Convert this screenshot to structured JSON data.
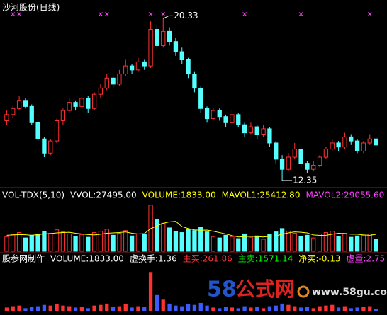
{
  "chart_data": [
    {
      "type": "candlestick",
      "title": "沙河股份(日线)",
      "high_label": "20.33",
      "low_label": "12.35",
      "up_color": "#ff3232",
      "down_color": "#54ffff",
      "signal_color": "#ff40ff",
      "ylim": [
        12.0,
        20.9
      ],
      "signals": [
        1,
        2,
        15,
        16,
        23,
        25,
        38,
        47,
        58
      ],
      "candles": [
        [
          15.3,
          15.8,
          15.1,
          15.6
        ],
        [
          15.6,
          16.0,
          15.4,
          15.9
        ],
        [
          15.9,
          16.5,
          15.8,
          16.3
        ],
        [
          16.3,
          16.4,
          15.9,
          16.0
        ],
        [
          16.0,
          16.1,
          15.1,
          15.2
        ],
        [
          15.2,
          15.3,
          14.3,
          14.4
        ],
        [
          14.4,
          14.5,
          13.5,
          13.7
        ],
        [
          13.7,
          14.4,
          13.6,
          14.3
        ],
        [
          14.3,
          15.4,
          14.2,
          15.3
        ],
        [
          15.3,
          15.9,
          15.1,
          15.8
        ],
        [
          15.8,
          16.4,
          15.7,
          16.2
        ],
        [
          16.2,
          16.3,
          15.8,
          16.0
        ],
        [
          16.0,
          16.6,
          15.9,
          16.4
        ],
        [
          16.4,
          16.5,
          15.7,
          15.9
        ],
        [
          15.9,
          16.7,
          15.8,
          16.6
        ],
        [
          16.6,
          17.1,
          16.4,
          16.9
        ],
        [
          16.9,
          17.6,
          16.8,
          17.4
        ],
        [
          17.4,
          17.5,
          16.9,
          17.1
        ],
        [
          17.1,
          17.8,
          17.0,
          17.6
        ],
        [
          17.6,
          18.3,
          17.5,
          18.0
        ],
        [
          18.0,
          18.1,
          17.6,
          17.8
        ],
        [
          17.8,
          18.4,
          17.7,
          18.2
        ],
        [
          18.2,
          18.3,
          17.8,
          18.0
        ],
        [
          18.0,
          20.2,
          17.9,
          19.8
        ],
        [
          19.8,
          20.0,
          18.8,
          19.0
        ],
        [
          19.0,
          20.33,
          18.9,
          19.7
        ],
        [
          19.7,
          19.9,
          19.0,
          19.2
        ],
        [
          19.2,
          19.4,
          18.5,
          18.7
        ],
        [
          18.7,
          18.9,
          18.1,
          18.3
        ],
        [
          18.3,
          18.4,
          17.4,
          17.6
        ],
        [
          17.6,
          17.7,
          16.7,
          16.9
        ],
        [
          16.9,
          17.0,
          15.7,
          15.9
        ],
        [
          15.9,
          16.0,
          15.2,
          15.4
        ],
        [
          15.4,
          15.9,
          15.3,
          15.8
        ],
        [
          15.8,
          15.9,
          15.3,
          15.5
        ],
        [
          15.5,
          15.6,
          15.0,
          15.2
        ],
        [
          15.2,
          15.8,
          15.1,
          15.6
        ],
        [
          15.6,
          15.7,
          15.0,
          15.1
        ],
        [
          15.1,
          15.2,
          14.5,
          14.7
        ],
        [
          14.7,
          15.2,
          14.6,
          15.0
        ],
        [
          15.0,
          15.1,
          14.4,
          14.6
        ],
        [
          14.6,
          15.1,
          14.5,
          14.9
        ],
        [
          14.9,
          15.0,
          14.0,
          14.2
        ],
        [
          14.2,
          14.3,
          13.2,
          13.4
        ],
        [
          13.4,
          13.6,
          12.35,
          12.9
        ],
        [
          12.9,
          13.7,
          12.8,
          13.5
        ],
        [
          13.5,
          14.2,
          13.4,
          13.9
        ],
        [
          13.9,
          14.0,
          13.0,
          13.2
        ],
        [
          13.2,
          13.3,
          12.7,
          12.9
        ],
        [
          12.9,
          13.3,
          12.8,
          13.1
        ],
        [
          13.1,
          13.6,
          13.0,
          13.5
        ],
        [
          13.5,
          14.0,
          13.4,
          13.9
        ],
        [
          13.9,
          14.4,
          13.8,
          14.2
        ],
        [
          14.2,
          14.3,
          13.8,
          14.0
        ],
        [
          14.0,
          14.7,
          13.9,
          14.5
        ],
        [
          14.5,
          14.6,
          14.1,
          14.3
        ],
        [
          14.3,
          14.4,
          13.7,
          13.8
        ],
        [
          13.8,
          14.3,
          13.7,
          14.2
        ],
        [
          14.2,
          14.6,
          14.1,
          14.4
        ],
        [
          14.4,
          14.5,
          14.0,
          14.1
        ]
      ]
    },
    {
      "type": "volume",
      "ylim": [
        0,
        90000
      ],
      "legend": [
        {
          "text": "VOL-TDX(5,10)",
          "color": "#ffffff"
        },
        {
          "text": "VVOL:27495.00",
          "color": "#ffffff"
        },
        {
          "text": "VOLUME:1833.00",
          "color": "#ffff00"
        },
        {
          "text": "MAVOL1:25412.80",
          "color": "#ffff00"
        },
        {
          "text": "MAVOL2:29055.60",
          "color": "#ff40ff"
        }
      ],
      "values": [
        22000,
        25000,
        28000,
        20000,
        24000,
        26000,
        30000,
        27000,
        32000,
        29000,
        26000,
        22000,
        25000,
        21000,
        28000,
        30000,
        33000,
        24000,
        27000,
        31000,
        23000,
        26000,
        25000,
        69000,
        48000,
        42000,
        35000,
        30000,
        28000,
        33000,
        31000,
        36000,
        29000,
        22000,
        20000,
        24000,
        22000,
        19000,
        26000,
        21000,
        23000,
        18000,
        25000,
        29000,
        34000,
        30000,
        27000,
        22000,
        24000,
        20000,
        26000,
        28000,
        30000,
        22000,
        27000,
        21000,
        23000,
        24000,
        26000,
        18000
      ],
      "lines": [
        {
          "name": "MAVOL1",
          "color": "#ffff00",
          "values": [
            24000,
            24500,
            25000,
            24800,
            24000,
            25000,
            26000,
            26500,
            27500,
            28000,
            28500,
            27000,
            26000,
            25000,
            24500,
            25500,
            27000,
            27500,
            28000,
            29000,
            27000,
            26000,
            26500,
            34000,
            38000,
            42000,
            44000,
            44800,
            37000,
            34000,
            32000,
            31500,
            31800,
            30000,
            28000,
            26000,
            23500,
            21500,
            22000,
            22500,
            22000,
            21500,
            22500,
            23000,
            25500,
            27500,
            29000,
            28500,
            27500,
            24500,
            23800,
            24000,
            25500,
            27000,
            26500,
            25500,
            25500,
            24500,
            24000,
            25412.8
          ]
        }
      ]
    },
    {
      "type": "flow",
      "ylim": [
        0,
        70
      ],
      "up_color": "#ff3232",
      "down_color": "#3b5bff",
      "legend": [
        {
          "text": "股参网制作",
          "color": "#ffffff"
        },
        {
          "text": "VOLUME:1833.00",
          "color": "#ffffff"
        },
        {
          "text": "虚换手:1.36",
          "color": "#ffffff"
        },
        {
          "text": "主买:261.86",
          "color": "#ff3232"
        },
        {
          "text": "主卖:1571.14",
          "color": "#00ff00"
        },
        {
          "text": "净买:-0.13",
          "color": "#ffff00"
        },
        {
          "text": "虚量:2.75",
          "color": "#ff40ff"
        }
      ],
      "values": [
        6,
        8,
        9,
        5,
        7,
        8,
        10,
        9,
        11,
        9,
        8,
        6,
        7,
        5,
        9,
        10,
        12,
        7,
        8,
        11,
        6,
        8,
        7,
        60,
        25,
        18,
        12,
        9,
        8,
        11,
        10,
        13,
        9,
        6,
        5,
        7,
        6,
        5,
        8,
        6,
        7,
        5,
        8,
        9,
        12,
        10,
        8,
        6,
        7,
        5,
        8,
        9,
        10,
        6,
        8,
        5,
        6,
        7,
        8,
        4
      ],
      "watermark": [
        "58",
        "公式网",
        "www.58gu.com"
      ]
    }
  ]
}
